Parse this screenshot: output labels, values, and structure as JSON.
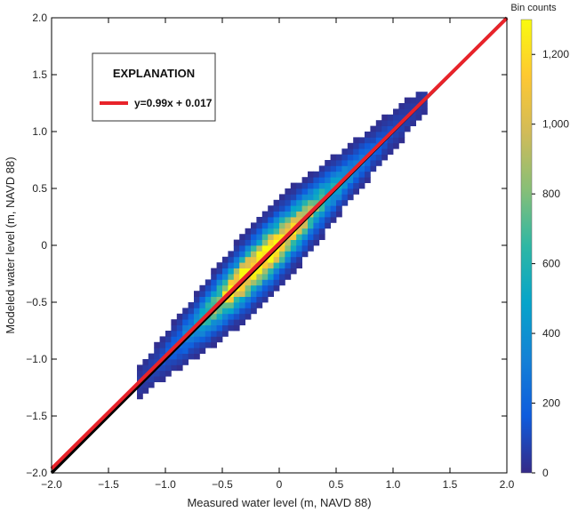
{
  "chart_data": {
    "type": "heatmap",
    "title": "",
    "xlabel": "Measured water level (m, NAVD 88)",
    "ylabel": "Modeled water level (m, NAVD 88)",
    "xlim": [
      -2.0,
      2.0
    ],
    "ylim": [
      -2.0,
      2.0
    ],
    "xticks": [
      "−2.0",
      "−1.5",
      "−1.0",
      "−0.5",
      "0",
      "0.5",
      "1.0",
      "1.5",
      "2.0"
    ],
    "yticks": [
      "−2.0",
      "−1.5",
      "−1.0",
      "−0.5",
      "0",
      "0.5",
      "1.0",
      "1.5",
      "2.0"
    ],
    "grid": false,
    "legend": {
      "title": "EXPLANATION",
      "placement": "top-left",
      "entries": [
        {
          "label": "y=0.99x + 0.017",
          "color": "#e8232a",
          "slope": 0.99,
          "intercept": 0.017
        }
      ]
    },
    "lines": [
      {
        "name": "one-to-one",
        "slope": 1.0,
        "intercept": 0.0,
        "color": "#000000"
      },
      {
        "name": "regression",
        "slope": 0.99,
        "intercept": 0.017,
        "color": "#e8232a"
      }
    ],
    "colorbar": {
      "title": "Bin counts",
      "range": [
        0,
        1300
      ],
      "ticks": [
        "0",
        "200",
        "400",
        "600",
        "800",
        "1,000",
        "1,200"
      ],
      "colormap": "parula",
      "colors": [
        "#352a87",
        "#0f5cdd",
        "#1481d6",
        "#06a4ca",
        "#2eb7a4",
        "#87bf77",
        "#d1bb59",
        "#fec832",
        "#f9fb0e"
      ]
    },
    "density": {
      "description_cells": "2D histogram of measured vs modeled water level concentrated along the 1:1 line",
      "x_range": [
        -1.25,
        1.3
      ],
      "peak_at": [
        -0.25,
        -0.23
      ],
      "peak_count": 1300
    }
  }
}
